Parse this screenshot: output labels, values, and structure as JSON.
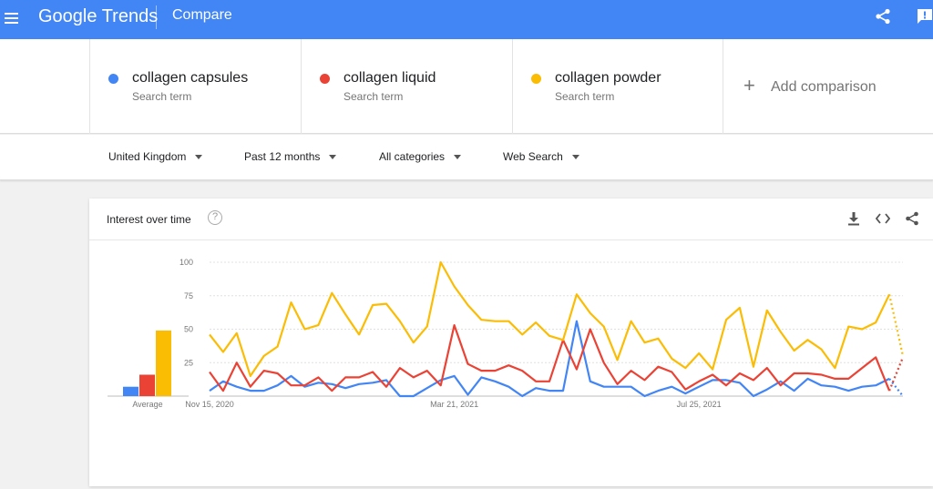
{
  "header": {
    "logo_text": "Google Trends",
    "page_title": "Compare",
    "bar_color": "#4285f4"
  },
  "terms": [
    {
      "name": "collagen capsules",
      "sublabel": "Search term",
      "color": "#4285f4"
    },
    {
      "name": "collagen liquid",
      "sublabel": "Search term",
      "color": "#ea4335"
    },
    {
      "name": "collagen powder",
      "sublabel": "Search term",
      "color": "#fbbc04"
    }
  ],
  "add_comparison": {
    "icon": "+",
    "label": "Add comparison"
  },
  "filters": {
    "region": "United Kingdom",
    "period": "Past 12 months",
    "category": "All categories",
    "search_type": "Web Search"
  },
  "card": {
    "title": "Interest over time",
    "help_icon": "?",
    "icons": [
      "download-icon",
      "embed-icon",
      "share-icon"
    ]
  },
  "chart_data": {
    "type": "line",
    "title": "",
    "ylim": [
      0,
      100
    ],
    "y_ticks": [
      25,
      50,
      75,
      100
    ],
    "x_tick_labels": [
      "Nov 15, 2020",
      "Mar 21, 2021",
      "Jul 25, 2021"
    ],
    "x_tick_indices": [
      0,
      18,
      36
    ],
    "grid": true,
    "partial_last_point": true,
    "average_label": "Average",
    "averages": [
      {
        "name": "collagen capsules",
        "value": 7
      },
      {
        "name": "collagen liquid",
        "value": 16
      },
      {
        "name": "collagen powder",
        "value": 49
      }
    ],
    "series": [
      {
        "name": "collagen capsules",
        "color": "#4285f4",
        "values": [
          4,
          11,
          7,
          4,
          4,
          8,
          15,
          7,
          10,
          9,
          6,
          9,
          10,
          12,
          0,
          0,
          6,
          12,
          15,
          1,
          14,
          11,
          7,
          0,
          6,
          4,
          4,
          56,
          11,
          7,
          7,
          7,
          0,
          4,
          7,
          2,
          7,
          12,
          12,
          10,
          0,
          5,
          11,
          4,
          13,
          8,
          7,
          4,
          7,
          8,
          13,
          0
        ]
      },
      {
        "name": "collagen liquid",
        "color": "#ea4335",
        "values": [
          18,
          4,
          25,
          7,
          19,
          17,
          8,
          8,
          14,
          4,
          14,
          14,
          18,
          7,
          21,
          14,
          19,
          8,
          53,
          24,
          19,
          19,
          23,
          19,
          11,
          11,
          42,
          20,
          50,
          25,
          9,
          19,
          12,
          22,
          18,
          5,
          11,
          16,
          8,
          17,
          12,
          21,
          8,
          17,
          17,
          16,
          13,
          13,
          21,
          29,
          4,
          29
        ]
      },
      {
        "name": "collagen powder",
        "color": "#fbbc04",
        "values": [
          46,
          33,
          47,
          15,
          30,
          37,
          70,
          50,
          53,
          77,
          61,
          46,
          68,
          69,
          56,
          40,
          52,
          100,
          82,
          68,
          57,
          56,
          56,
          46,
          55,
          45,
          42,
          76,
          62,
          52,
          27,
          56,
          40,
          43,
          28,
          21,
          32,
          20,
          57,
          66,
          22,
          64,
          48,
          34,
          42,
          35,
          21,
          52,
          50,
          55,
          76,
          30
        ]
      }
    ]
  }
}
